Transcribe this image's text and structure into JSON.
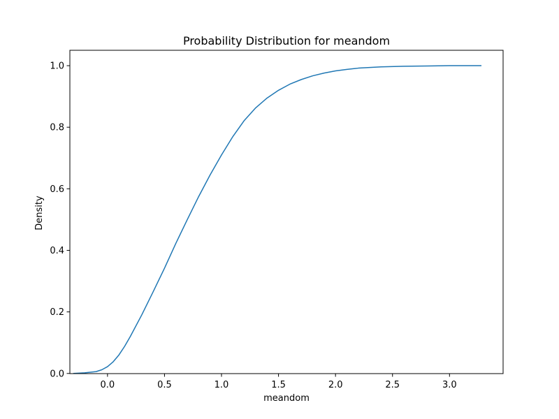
{
  "chart_data": {
    "type": "line",
    "title": "Probability Distribution for meandom",
    "xlabel": "meandom",
    "ylabel": "Density",
    "xlim": [
      -0.33,
      3.47
    ],
    "ylim": [
      -0.0005,
      1.05
    ],
    "x_ticks": [
      0.0,
      0.5,
      1.0,
      1.5,
      2.0,
      2.5,
      3.0
    ],
    "x_tick_labels": [
      "0.0",
      "0.5",
      "1.0",
      "1.5",
      "2.0",
      "2.5",
      "3.0"
    ],
    "y_ticks": [
      0.0,
      0.2,
      0.4,
      0.6,
      0.8,
      1.0
    ],
    "y_tick_labels": [
      "0.0",
      "0.2",
      "0.4",
      "0.6",
      "0.8",
      "1.0"
    ],
    "grid": false,
    "series": [
      {
        "color": "#1f77b4",
        "x": [
          -0.3,
          -0.2,
          -0.1,
          -0.05,
          0.0,
          0.05,
          0.1,
          0.15,
          0.2,
          0.3,
          0.4,
          0.5,
          0.6,
          0.7,
          0.8,
          0.9,
          1.0,
          1.1,
          1.2,
          1.3,
          1.4,
          1.5,
          1.6,
          1.7,
          1.8,
          1.9,
          2.0,
          2.1,
          2.2,
          2.4,
          2.6,
          2.8,
          3.0,
          3.28
        ],
        "y": [
          0.0,
          0.002,
          0.006,
          0.012,
          0.022,
          0.038,
          0.06,
          0.088,
          0.12,
          0.19,
          0.265,
          0.342,
          0.423,
          0.5,
          0.575,
          0.645,
          0.71,
          0.77,
          0.822,
          0.863,
          0.895,
          0.92,
          0.94,
          0.955,
          0.967,
          0.976,
          0.983,
          0.988,
          0.992,
          0.996,
          0.998,
          0.999,
          1.0,
          1.0
        ]
      }
    ]
  }
}
